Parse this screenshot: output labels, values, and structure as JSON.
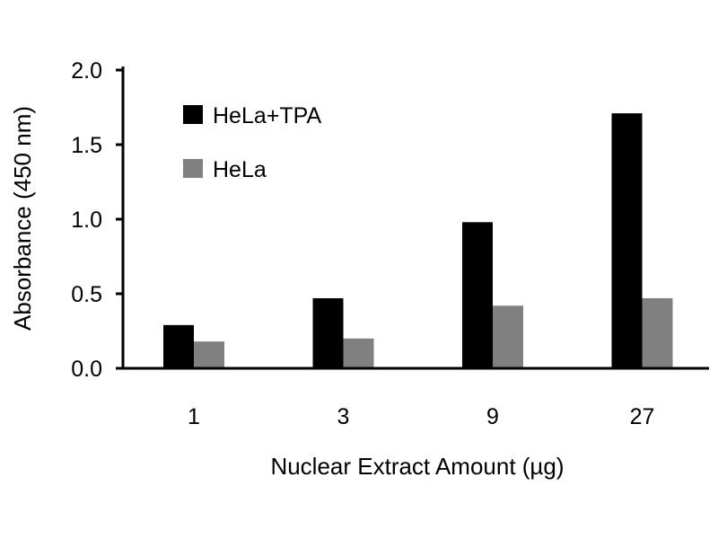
{
  "chart_data": {
    "type": "bar",
    "title": "",
    "xlabel": "Nuclear Extract Amount (µg)",
    "ylabel": "Absorbance (450 nm)",
    "categories": [
      "1",
      "3",
      "9",
      "27"
    ],
    "series": [
      {
        "name": "HeLa+TPA",
        "color": "#000000",
        "values": [
          0.29,
          0.47,
          0.98,
          1.71
        ]
      },
      {
        "name": "HeLa",
        "color": "#808080",
        "values": [
          0.18,
          0.2,
          0.42,
          0.47
        ]
      }
    ],
    "ylim": [
      0,
      2.0
    ],
    "yticks": [
      "0.0",
      "0.5",
      "1.0",
      "1.5",
      "2.0"
    ],
    "grid": false,
    "legend_position": "top-left"
  }
}
